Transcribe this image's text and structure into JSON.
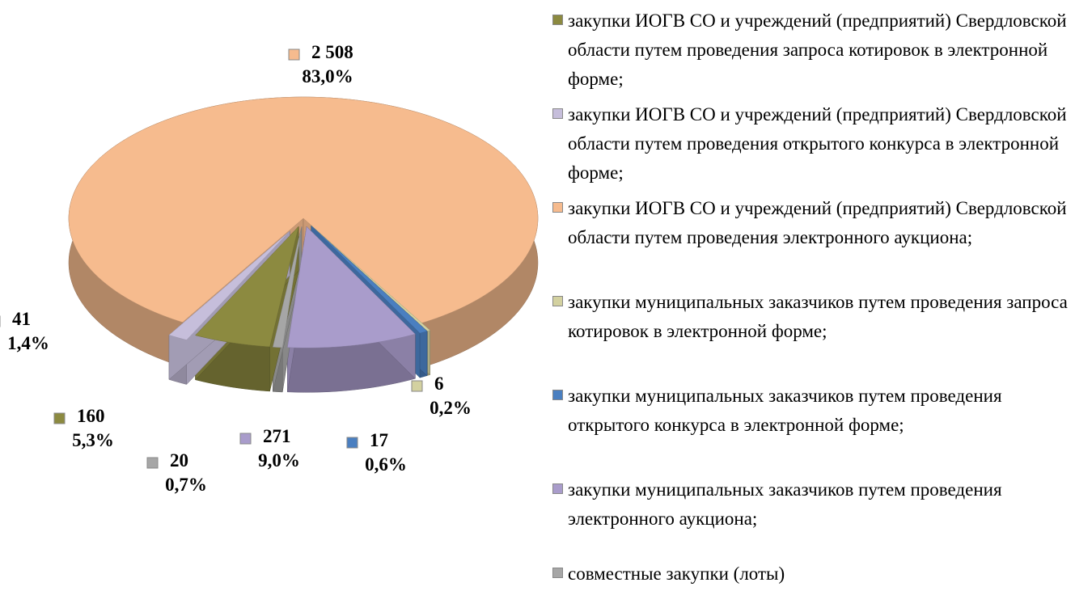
{
  "chart_data": {
    "type": "pie3d",
    "categories": [
      "закупки ИОГВ СО и учреждений (предприятий) Свердловской области путем проведения запроса котировок в электронной форме;",
      "закупки ИОГВ СО и учреждений (предприятий) Свердловской области путем проведения открытого конкурса в электронной форме;",
      "закупки ИОГВ СО и учреждений (предприятий) Свердловской области путем проведения электронного аукциона;",
      "закупки муниципальных заказчиков путем проведения запроса котировок в электронной форме;",
      "закупки муниципальных заказчиков путем проведения открытого конкурса в электронной форме;",
      "закупки муниципальных заказчиков путем проведения электронного аукциона;",
      "совместные закупки (лоты)"
    ],
    "values": [
      160,
      41,
      2508,
      6,
      17,
      271,
      20
    ],
    "value_labels": [
      "160",
      "41",
      "2 508",
      "6",
      "17",
      "271",
      "20"
    ],
    "percents": [
      5.3,
      1.4,
      83.0,
      0.2,
      0.6,
      9.0,
      0.7
    ],
    "percent_labels": [
      "5,3%",
      "1,4%",
      "83,0%",
      "0,2%",
      "0,6%",
      "9,0%",
      "0,7%"
    ],
    "colors": [
      "#8c8a40",
      "#c6bedb",
      "#f6bb8e",
      "#d3d1a0",
      "#4a7fc0",
      "#a99ccb",
      "#a6a6a6"
    ],
    "legend": "right"
  }
}
